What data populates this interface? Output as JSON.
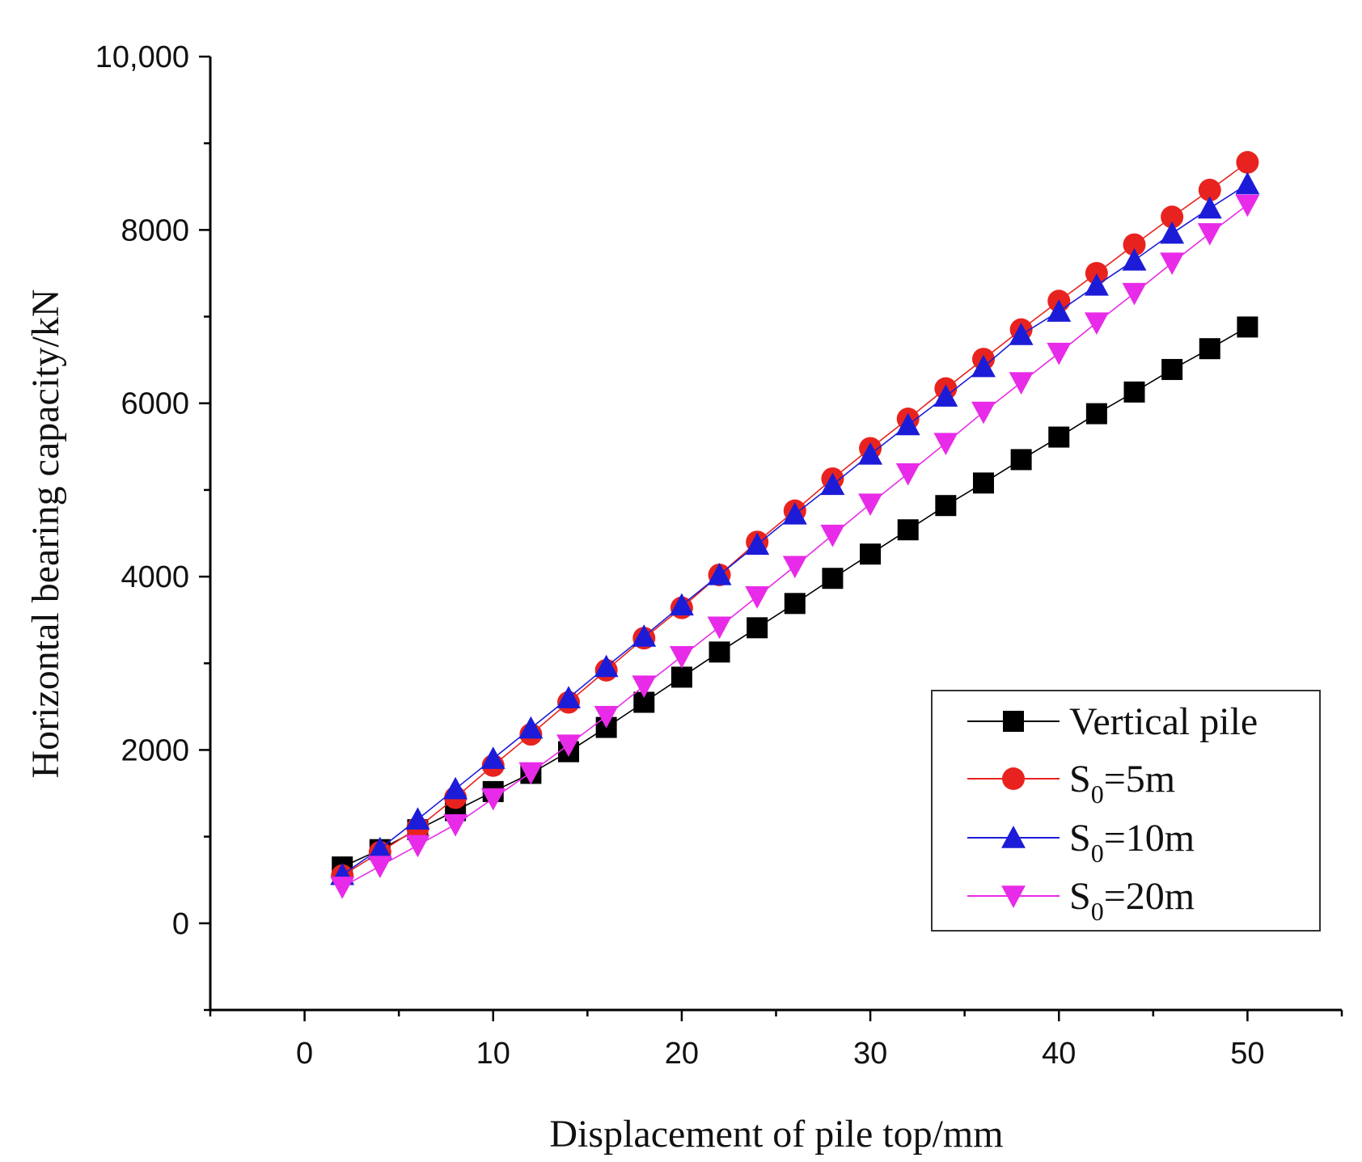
{
  "chart_data": {
    "type": "line",
    "title": "",
    "xlabel": "Displacement of pile top/mm",
    "ylabel": "Horizontal bearing capacity/kN",
    "xlim": [
      -5,
      55
    ],
    "ylim": [
      -1000,
      10000
    ],
    "x_ticks": [
      0,
      10,
      20,
      30,
      40,
      50
    ],
    "x_tick_labels": [
      "0",
      "10",
      "20",
      "30",
      "40",
      "50"
    ],
    "y_ticks": [
      0,
      2000,
      4000,
      6000,
      8000,
      10000
    ],
    "y_tick_labels": [
      "0",
      "2000",
      "4000",
      "6000",
      "8000",
      "10,000"
    ],
    "grid": false,
    "legend_position": "bottom-right",
    "x": [
      2,
      4,
      6,
      8,
      10,
      12,
      14,
      16,
      18,
      20,
      22,
      24,
      26,
      28,
      30,
      32,
      34,
      36,
      38,
      40,
      42,
      44,
      46,
      48,
      50
    ],
    "series": [
      {
        "name": "Vertical pile",
        "legend_main": "Vertical pile",
        "legend_sub": "",
        "legend_tail": "",
        "marker": "square",
        "color": "#000000",
        "values": [
          650,
          850,
          1080,
          1300,
          1520,
          1730,
          1980,
          2260,
          2550,
          2840,
          3130,
          3410,
          3690,
          3980,
          4260,
          4540,
          4820,
          5080,
          5350,
          5610,
          5880,
          6130,
          6390,
          6630,
          6880
        ]
      },
      {
        "name": "S0=5m",
        "legend_main": "S",
        "legend_sub": "0",
        "legend_tail": "=5m",
        "marker": "circle",
        "color": "#e8231f",
        "values": [
          550,
          820,
          1100,
          1450,
          1820,
          2180,
          2550,
          2920,
          3290,
          3640,
          4020,
          4400,
          4760,
          5130,
          5480,
          5820,
          6170,
          6510,
          6850,
          7180,
          7500,
          7830,
          8150,
          8460,
          8780
        ]
      },
      {
        "name": "S0=10m",
        "legend_main": "S",
        "legend_sub": "0",
        "legend_tail": "=10m",
        "marker": "triangle-up",
        "color": "#1c1cd8",
        "values": [
          560,
          860,
          1200,
          1550,
          1900,
          2250,
          2600,
          2960,
          3310,
          3670,
          4020,
          4370,
          4720,
          5060,
          5410,
          5750,
          6080,
          6420,
          6790,
          7060,
          7360,
          7650,
          7960,
          8250,
          8530
        ]
      },
      {
        "name": "S0=20m",
        "legend_main": "S",
        "legend_sub": "0",
        "legend_tail": "=20m",
        "marker": "triangle-down",
        "color": "#e82be8",
        "values": [
          420,
          660,
          900,
          1140,
          1440,
          1740,
          2060,
          2390,
          2740,
          3080,
          3420,
          3770,
          4120,
          4480,
          4840,
          5190,
          5540,
          5900,
          6240,
          6580,
          6930,
          7270,
          7620,
          7960,
          8290
        ]
      }
    ]
  }
}
